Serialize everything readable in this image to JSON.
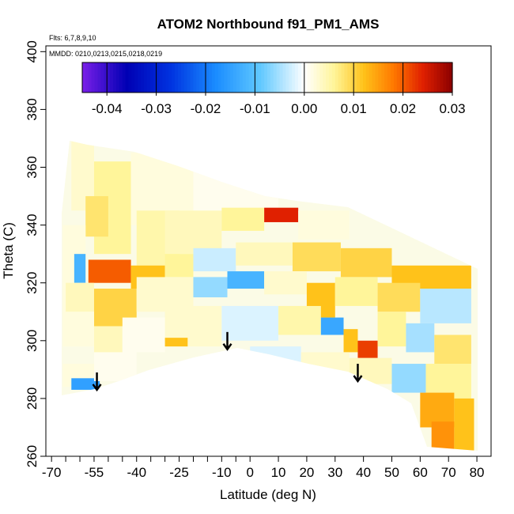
{
  "chart_data": {
    "type": "heatmap",
    "title": "ATOM2 Northbound f91_PM1_AMS",
    "annotation_flights": "Flts: 6,7,8,9,10",
    "annotation_dates": "MMDD: 0210,0213,0215,0218,0219",
    "xlabel": "Latitude (deg N)",
    "ylabel": "Theta (C)",
    "xlim": [
      -72,
      85
    ],
    "ylim": [
      260,
      402
    ],
    "x_ticks": [
      -70,
      -55,
      -40,
      -25,
      -10,
      0,
      10,
      20,
      30,
      40,
      50,
      60,
      70,
      80
    ],
    "x_tick_labels": [
      "-70",
      "-55",
      "-40",
      "-25",
      "-10",
      "0",
      "10",
      "20",
      "30",
      "40",
      "50",
      "60",
      "70",
      "80"
    ],
    "x_minor_ticks": [
      -65,
      -60,
      -50,
      -45,
      -35,
      -30,
      -20,
      -15,
      -5
    ],
    "y_ticks": [
      260,
      280,
      300,
      320,
      340,
      360,
      380,
      400
    ],
    "y_tick_labels": [
      "260",
      "280",
      "300",
      "320",
      "340",
      "360",
      "380",
      "400"
    ],
    "colorbar": {
      "range": [
        -0.045,
        0.03
      ],
      "tick_values": [
        -0.04,
        -0.03,
        -0.02,
        -0.01,
        0.0,
        0.01,
        0.02,
        0.03
      ],
      "tick_labels": [
        "-0.04",
        "-0.03",
        "-0.02",
        "-0.01",
        "0.00",
        "0.01",
        "0.02",
        "0.03"
      ],
      "colors": [
        "#7a1fe8",
        "#0000b4",
        "#0033e0",
        "#1a8cff",
        "#5fc8ff",
        "#ffffff",
        "#fff59a",
        "#ffc21a",
        "#ff7a00",
        "#e02000",
        "#8b0000"
      ]
    },
    "cells": [
      {
        "lat": [
          -63,
          -55
        ],
        "theta": [
          345,
          370
        ],
        "value": 0.003
      },
      {
        "lat": [
          -55,
          -42
        ],
        "theta": [
          330,
          362
        ],
        "value": 0.006
      },
      {
        "lat": [
          -58,
          -50
        ],
        "theta": [
          336,
          350
        ],
        "value": 0.008
      },
      {
        "lat": [
          -42,
          -20
        ],
        "theta": [
          340,
          365
        ],
        "value": 0.002
      },
      {
        "lat": [
          -20,
          10
        ],
        "theta": [
          345,
          360
        ],
        "value": 0.001
      },
      {
        "lat": [
          -40,
          -25
        ],
        "theta": [
          325,
          345
        ],
        "value": 0.005
      },
      {
        "lat": [
          -30,
          -10
        ],
        "theta": [
          330,
          345
        ],
        "value": 0.004
      },
      {
        "lat": [
          -10,
          5
        ],
        "theta": [
          338,
          346
        ],
        "value": 0.006
      },
      {
        "lat": [
          5,
          17
        ],
        "theta": [
          341,
          346
        ],
        "value": 0.024
      },
      {
        "lat": [
          17,
          35
        ],
        "theta": [
          335,
          345
        ],
        "value": 0.002
      },
      {
        "lat": [
          -66,
          -58
        ],
        "theta": [
          305,
          340
        ],
        "value": 0.002
      },
      {
        "lat": [
          -62,
          -58
        ],
        "theta": [
          320,
          330
        ],
        "value": -0.012
      },
      {
        "lat": [
          -57,
          -42
        ],
        "theta": [
          320,
          328
        ],
        "value": 0.02
      },
      {
        "lat": [
          -42,
          -30
        ],
        "theta": [
          318,
          326
        ],
        "value": 0.012
      },
      {
        "lat": [
          -30,
          -20
        ],
        "theta": [
          322,
          330
        ],
        "value": 0.006
      },
      {
        "lat": [
          -20,
          -5
        ],
        "theta": [
          324,
          332
        ],
        "value": -0.003
      },
      {
        "lat": [
          -5,
          15
        ],
        "theta": [
          326,
          334
        ],
        "value": 0.004
      },
      {
        "lat": [
          15,
          32
        ],
        "theta": [
          324,
          334
        ],
        "value": 0.009
      },
      {
        "lat": [
          32,
          50
        ],
        "theta": [
          322,
          332
        ],
        "value": 0.01
      },
      {
        "lat": [
          50,
          78
        ],
        "theta": [
          318,
          326
        ],
        "value": 0.012
      },
      {
        "lat": [
          -65,
          -55
        ],
        "theta": [
          310,
          320
        ],
        "value": 0.004
      },
      {
        "lat": [
          -55,
          -40
        ],
        "theta": [
          305,
          318
        ],
        "value": 0.01
      },
      {
        "lat": [
          -40,
          -20
        ],
        "theta": [
          310,
          322
        ],
        "value": 0.003
      },
      {
        "lat": [
          -20,
          -8
        ],
        "theta": [
          315,
          322
        ],
        "value": -0.006
      },
      {
        "lat": [
          -8,
          5
        ],
        "theta": [
          318,
          324
        ],
        "value": -0.012
      },
      {
        "lat": [
          5,
          20
        ],
        "theta": [
          316,
          324
        ],
        "value": 0.003
      },
      {
        "lat": [
          20,
          30
        ],
        "theta": [
          308,
          320
        ],
        "value": 0.012
      },
      {
        "lat": [
          30,
          45
        ],
        "theta": [
          312,
          322
        ],
        "value": 0.006
      },
      {
        "lat": [
          45,
          60
        ],
        "theta": [
          310,
          320
        ],
        "value": 0.009
      },
      {
        "lat": [
          60,
          78
        ],
        "theta": [
          306,
          318
        ],
        "value": -0.004
      },
      {
        "lat": [
          -66,
          -55
        ],
        "theta": [
          298,
          310
        ],
        "value": 0.002
      },
      {
        "lat": [
          -55,
          -45
        ],
        "theta": [
          295,
          305
        ],
        "value": 0.004
      },
      {
        "lat": [
          -45,
          -30
        ],
        "theta": [
          296,
          308
        ],
        "value": 0.001
      },
      {
        "lat": [
          -30,
          -10
        ],
        "theta": [
          298,
          312
        ],
        "value": 0.003
      },
      {
        "lat": [
          -10,
          10
        ],
        "theta": [
          300,
          312
        ],
        "value": -0.002
      },
      {
        "lat": [
          10,
          25
        ],
        "theta": [
          302,
          312
        ],
        "value": 0.005
      },
      {
        "lat": [
          25,
          33
        ],
        "theta": [
          302,
          308
        ],
        "value": -0.014
      },
      {
        "lat": [
          33,
          38
        ],
        "theta": [
          296,
          304
        ],
        "value": 0.012
      },
      {
        "lat": [
          38,
          45
        ],
        "theta": [
          294,
          300
        ],
        "value": 0.022
      },
      {
        "lat": [
          45,
          55
        ],
        "theta": [
          298,
          310
        ],
        "value": 0.006
      },
      {
        "lat": [
          55,
          65
        ],
        "theta": [
          296,
          306
        ],
        "value": -0.005
      },
      {
        "lat": [
          65,
          78
        ],
        "theta": [
          292,
          302
        ],
        "value": 0.008
      },
      {
        "lat": [
          -66,
          -55
        ],
        "theta": [
          284,
          292
        ],
        "value": 0.002
      },
      {
        "lat": [
          -63,
          -53
        ],
        "theta": [
          283,
          287
        ],
        "value": -0.015
      },
      {
        "lat": [
          -55,
          -40
        ],
        "theta": [
          286,
          296
        ],
        "value": 0.001
      },
      {
        "lat": [
          -30,
          -22
        ],
        "theta": [
          298,
          301
        ],
        "value": 0.012
      },
      {
        "lat": [
          0,
          18
        ],
        "theta": [
          290,
          298
        ],
        "value": -0.002
      },
      {
        "lat": [
          18,
          35
        ],
        "theta": [
          288,
          296
        ],
        "value": 0.003
      },
      {
        "lat": [
          35,
          50
        ],
        "theta": [
          285,
          294
        ],
        "value": 0.004
      },
      {
        "lat": [
          50,
          62
        ],
        "theta": [
          282,
          292
        ],
        "value": -0.006
      },
      {
        "lat": [
          62,
          78
        ],
        "theta": [
          280,
          292
        ],
        "value": 0.006
      },
      {
        "lat": [
          60,
          72
        ],
        "theta": [
          270,
          282
        ],
        "value": 0.014
      },
      {
        "lat": [
          64,
          72
        ],
        "theta": [
          262,
          272
        ],
        "value": 0.016
      },
      {
        "lat": [
          72,
          79
        ],
        "theta": [
          262,
          280
        ],
        "value": 0.012
      }
    ],
    "arrows": [
      {
        "lat": -54,
        "theta": 289
      },
      {
        "lat": -8,
        "theta": 303
      },
      {
        "lat": 38,
        "theta": 292
      }
    ]
  }
}
